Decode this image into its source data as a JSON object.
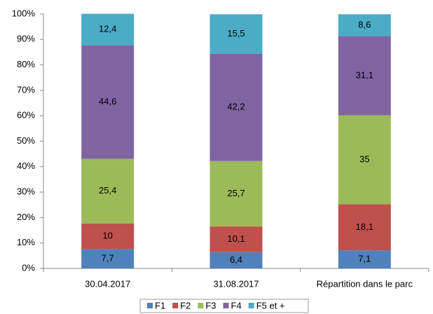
{
  "chart_data": {
    "type": "stacked_bar",
    "categories": [
      "30.04.2017",
      "31.08.2017",
      "Répartition dans le parc"
    ],
    "series": [
      {
        "name": "F1",
        "color": "#4f81bd",
        "values": [
          7.7,
          6.4,
          7.1
        ],
        "value_labels": [
          "7,7",
          "6,4",
          "7,1"
        ]
      },
      {
        "name": "F2",
        "color": "#c0504d",
        "values": [
          10,
          10.1,
          18.1
        ],
        "value_labels": [
          "10",
          "10,1",
          "18,1"
        ]
      },
      {
        "name": "F3",
        "color": "#9bbb59",
        "values": [
          25.4,
          25.7,
          35
        ],
        "value_labels": [
          "25,4",
          "25,7",
          "35"
        ]
      },
      {
        "name": "F4",
        "color": "#8064a2",
        "values": [
          44.6,
          42.2,
          31.1
        ],
        "value_labels": [
          "44,6",
          "42,2",
          "31,1"
        ]
      },
      {
        "name": "F5 et +",
        "color": "#4bacc6",
        "values": [
          12.4,
          15.5,
          8.6
        ],
        "value_labels": [
          "12,4",
          "15,5",
          "8,6"
        ]
      }
    ],
    "ylim": [
      0,
      100
    ],
    "yticks": [
      {
        "value": 0,
        "label": "0%"
      },
      {
        "value": 10,
        "label": "10%"
      },
      {
        "value": 20,
        "label": "20%"
      },
      {
        "value": 30,
        "label": "30%"
      },
      {
        "value": 40,
        "label": "40%"
      },
      {
        "value": 50,
        "label": "50%"
      },
      {
        "value": 60,
        "label": "60%"
      },
      {
        "value": 70,
        "label": "70%"
      },
      {
        "value": 80,
        "label": "80%"
      },
      {
        "value": 90,
        "label": "90%"
      },
      {
        "value": 100,
        "label": "100%"
      }
    ],
    "legend": "bottom"
  }
}
